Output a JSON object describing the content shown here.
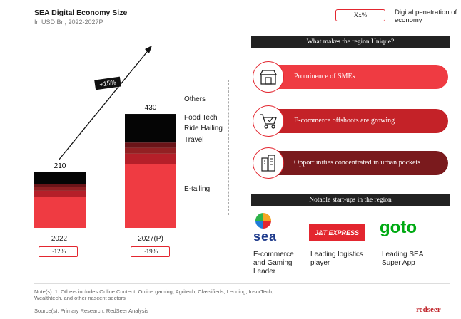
{
  "header": {
    "title": "SEA Digital Economy Size",
    "subtitle": "In USD Bn, 2022-2027P",
    "legend_box": "Xx%",
    "legend_text": "Digital penetration of economy"
  },
  "chart_data": {
    "type": "bar",
    "stacked": true,
    "categories": [
      "2022",
      "2027(P)"
    ],
    "totals": [
      210,
      430
    ],
    "series": [
      {
        "name": "E-tailing",
        "values": [
          118,
          240
        ],
        "color": "#ef3b42"
      },
      {
        "name": "Travel",
        "values": [
          22,
          40
        ],
        "color": "#b51f29"
      },
      {
        "name": "Ride Hailing",
        "values": [
          14,
          22
        ],
        "color": "#922023"
      },
      {
        "name": "Food Tech",
        "values": [
          12,
          20
        ],
        "color": "#6a1418"
      },
      {
        "name": "Others",
        "values": [
          44,
          108
        ],
        "color": "#050505"
      }
    ],
    "series_labels": [
      "Others",
      "Food Tech",
      "Ride Hailing",
      "Travel",
      "E-tailing"
    ],
    "penetration": [
      "~12%",
      "~19%"
    ],
    "growth_label": "+15%"
  },
  "unique": {
    "heading": "What makes the region Unique?",
    "items": [
      {
        "label": "Prominence of SMEs",
        "icon": "shop-icon",
        "color": "#ef3b42"
      },
      {
        "label": "E-commerce offshoots are growing",
        "icon": "cart-icon",
        "color": "#c42228"
      },
      {
        "label": "Opportunities concentrated in urban pockets",
        "icon": "buildings-icon",
        "color": "#7a1a1d"
      }
    ]
  },
  "startups": {
    "heading": "Notable start-ups in the region",
    "items": [
      {
        "logo_text": "sea",
        "caption": "E-commerce and Gaming Leader"
      },
      {
        "logo_text": "J&T EXPRESS",
        "caption": "Leading logistics player"
      },
      {
        "logo_text": "goto",
        "caption": "Leading SEA Super App"
      }
    ]
  },
  "footer": {
    "note": "Note(s): 1. Others includes Online Content, Online gaming, Agritech, Classifieds, Lending, InsurTech, Wealthtech, and other nascent sectors",
    "source": "Source(s): Primary Research, RedSeer Analysis",
    "brand": "redseer"
  }
}
